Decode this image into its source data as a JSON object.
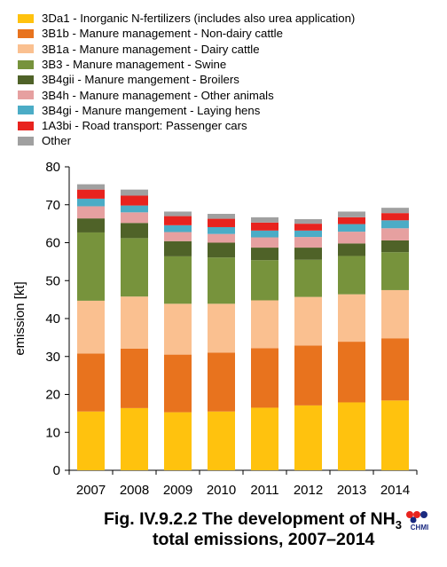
{
  "chart_data": {
    "type": "bar",
    "stacked": true,
    "categories": [
      "2007",
      "2008",
      "2009",
      "2010",
      "2011",
      "2012",
      "2013",
      "2014"
    ],
    "ylabel": "emission [kt]",
    "ylim": [
      0,
      80
    ],
    "yticks": [
      0,
      10,
      20,
      30,
      40,
      50,
      60,
      70,
      80
    ],
    "grid": false,
    "legend_position": "top-left",
    "series": [
      {
        "name": "3Da1 - Inorganic N-fertilizers (includes also urea application)",
        "color": "#FFC20E",
        "values": [
          15.5,
          16.4,
          15.3,
          15.5,
          16.5,
          17.1,
          17.9,
          18.4
        ]
      },
      {
        "name": "3B1b - Manure management - Non-dairy cattle",
        "color": "#E8731E",
        "values": [
          15.3,
          15.7,
          15.2,
          15.5,
          15.7,
          15.8,
          16.0,
          16.4
        ]
      },
      {
        "name": "3B1a - Manure management - Dairy cattle",
        "color": "#FAC090",
        "values": [
          13.9,
          13.7,
          13.4,
          12.9,
          12.6,
          12.8,
          12.5,
          12.7
        ]
      },
      {
        "name": "3B3 - Manure management - Swine",
        "color": "#77933C",
        "values": [
          18.0,
          15.4,
          12.5,
          12.2,
          10.6,
          9.8,
          10.1,
          10.0
        ]
      },
      {
        "name": "3B4gii - Manure mangement -  Broilers",
        "color": "#4F6228",
        "values": [
          3.7,
          4.0,
          4.0,
          3.9,
          3.3,
          3.2,
          3.3,
          3.1
        ]
      },
      {
        "name": "3B4h - Manure management - Other animals",
        "color": "#E6A0A0",
        "values": [
          3.2,
          2.8,
          2.4,
          2.3,
          2.7,
          2.8,
          3.1,
          3.2
        ]
      },
      {
        "name": "3B4gi - Manure mangement -  Laying hens",
        "color": "#4BACC6",
        "values": [
          2.0,
          1.8,
          1.8,
          1.8,
          1.8,
          1.7,
          2.0,
          2.1
        ]
      },
      {
        "name": "1A3bi - Road transport: Passenger cars",
        "color": "#E8231E",
        "values": [
          2.4,
          2.6,
          2.4,
          2.2,
          2.1,
          1.8,
          1.8,
          1.9
        ]
      },
      {
        "name": "Other",
        "color": "#A0A0A0",
        "values": [
          1.4,
          1.6,
          1.2,
          1.3,
          1.4,
          1.2,
          1.5,
          1.4
        ]
      }
    ]
  },
  "caption": {
    "line1_prefix": "Fig. IV.9.2.2  The development of NH",
    "line1_sub": "3",
    "line2": "total emissions, 2007–2014"
  },
  "logo": {
    "text": "CHMI",
    "colors": [
      "#E8231E",
      "#1A2A80"
    ]
  }
}
